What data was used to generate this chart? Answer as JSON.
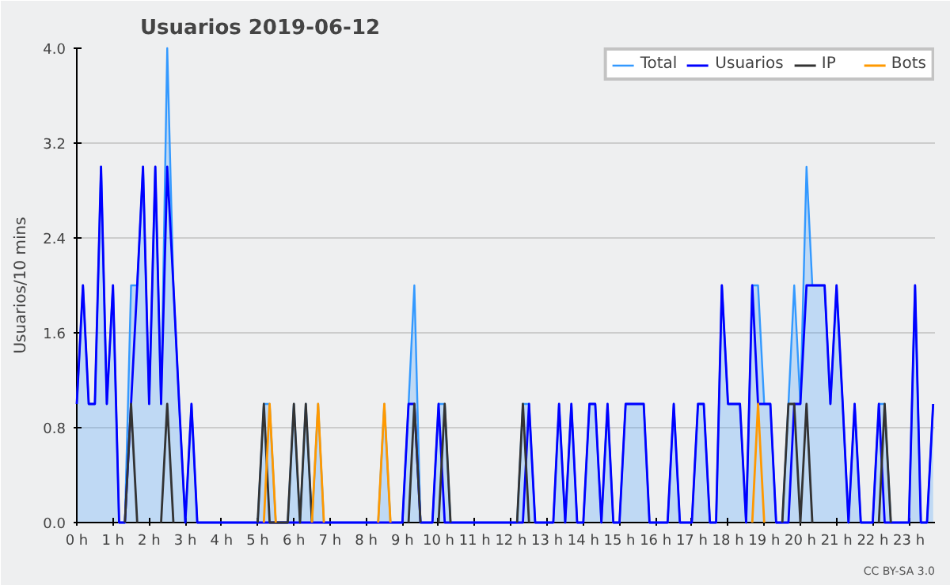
{
  "chart_data": {
    "type": "line",
    "title": "Usuarios  2019-06-12",
    "ylabel": "Usuarios/10 mins",
    "x": [
      0,
      0.17,
      0.33,
      0.5,
      0.67,
      0.83,
      1,
      1.17,
      1.33,
      1.5,
      1.67,
      1.83,
      2,
      2.17,
      2.33,
      2.5,
      2.67,
      2.83,
      3,
      3.17,
      3.33,
      3.5,
      3.67,
      3.83,
      4,
      4.17,
      4.33,
      4.5,
      4.67,
      4.83,
      5,
      5.17,
      5.33,
      5.5,
      5.67,
      5.83,
      6,
      6.17,
      6.33,
      6.5,
      6.67,
      6.83,
      7,
      7.17,
      7.33,
      7.5,
      7.67,
      7.83,
      8,
      8.17,
      8.33,
      8.5,
      8.67,
      8.83,
      9,
      9.17,
      9.33,
      9.5,
      9.67,
      9.83,
      10,
      10.17,
      10.33,
      10.5,
      10.67,
      10.83,
      11,
      11.17,
      11.33,
      11.5,
      11.67,
      11.83,
      12,
      12.17,
      12.33,
      12.5,
      12.67,
      12.83,
      13,
      13.17,
      13.33,
      13.5,
      13.67,
      13.83,
      14,
      14.17,
      14.33,
      14.5,
      14.67,
      14.83,
      15,
      15.17,
      15.33,
      15.5,
      15.67,
      15.83,
      16,
      16.17,
      16.33,
      16.5,
      16.67,
      16.83,
      17,
      17.17,
      17.33,
      17.5,
      17.67,
      17.83,
      18,
      18.17,
      18.33,
      18.5,
      18.67,
      18.83,
      19,
      19.17,
      19.33,
      19.5,
      19.67,
      19.83,
      20,
      20.17,
      20.33,
      20.5,
      20.67,
      20.83,
      21,
      21.17,
      21.33,
      21.5,
      21.67,
      21.83,
      22,
      22.17,
      22.33,
      22.5,
      22.67,
      22.83,
      23,
      23.17,
      23.33,
      23.5,
      23.67
    ],
    "series": [
      {
        "name": "Total",
        "type": "area",
        "color": "#3399ff",
        "values": [
          1,
          2,
          1,
          1,
          3,
          1,
          2,
          0,
          0,
          2,
          2,
          3,
          1,
          3,
          1,
          4,
          2,
          1,
          0,
          1,
          0,
          0,
          0,
          0,
          0,
          0,
          0,
          0,
          0,
          0,
          0,
          1,
          1,
          0,
          0,
          0,
          1,
          0,
          1,
          0,
          1,
          0,
          0,
          0,
          0,
          0,
          0,
          0,
          0,
          0,
          0,
          1,
          0,
          0,
          0,
          1,
          2,
          0,
          0,
          0,
          1,
          1,
          0,
          0,
          0,
          0,
          0,
          0,
          0,
          0,
          0,
          0,
          0,
          0,
          1,
          1,
          0,
          0,
          0,
          0,
          1,
          0,
          1,
          0,
          0,
          1,
          1,
          0,
          1,
          0,
          0,
          1,
          1,
          1,
          1,
          0,
          0,
          0,
          0,
          1,
          0,
          0,
          0,
          1,
          1,
          0,
          0,
          2,
          1,
          1,
          1,
          0,
          2,
          2,
          1,
          1,
          0,
          0,
          1,
          2,
          1,
          3,
          2,
          2,
          2,
          1,
          2,
          1,
          0,
          1,
          0,
          0,
          0,
          1,
          1,
          0,
          0,
          0,
          0,
          2,
          0,
          0,
          1
        ]
      },
      {
        "name": "Usuarios",
        "color": "#0000ff",
        "values": [
          1,
          2,
          1,
          1,
          3,
          1,
          2,
          0,
          0,
          1,
          2,
          3,
          1,
          3,
          1,
          3,
          2,
          1,
          0,
          1,
          0,
          0,
          0,
          0,
          0,
          0,
          0,
          0,
          0,
          0,
          0,
          0,
          0,
          0,
          0,
          0,
          0,
          0,
          0,
          0,
          0,
          0,
          0,
          0,
          0,
          0,
          0,
          0,
          0,
          0,
          0,
          0,
          0,
          0,
          0,
          1,
          1,
          0,
          0,
          0,
          1,
          0,
          0,
          0,
          0,
          0,
          0,
          0,
          0,
          0,
          0,
          0,
          0,
          0,
          0,
          1,
          0,
          0,
          0,
          0,
          1,
          0,
          1,
          0,
          0,
          1,
          1,
          0,
          1,
          0,
          0,
          1,
          1,
          1,
          1,
          0,
          0,
          0,
          0,
          1,
          0,
          0,
          0,
          1,
          1,
          0,
          0,
          2,
          1,
          1,
          1,
          0,
          2,
          1,
          1,
          1,
          0,
          0,
          0,
          1,
          1,
          2,
          2,
          2,
          2,
          1,
          2,
          1,
          0,
          1,
          0,
          0,
          0,
          1,
          0,
          0,
          0,
          0,
          0,
          2,
          0,
          0,
          1
        ]
      },
      {
        "name": "IP",
        "color": "#333333",
        "values": [
          null,
          null,
          null,
          null,
          null,
          null,
          null,
          null,
          0,
          1,
          0,
          null,
          null,
          null,
          0,
          1,
          0,
          null,
          null,
          null,
          null,
          null,
          null,
          null,
          null,
          null,
          null,
          null,
          null,
          null,
          0,
          1,
          0,
          0,
          0,
          0,
          1,
          0,
          1,
          0,
          null,
          null,
          null,
          null,
          null,
          null,
          null,
          null,
          null,
          null,
          null,
          null,
          null,
          null,
          null,
          0,
          1,
          0,
          null,
          null,
          0,
          1,
          0,
          null,
          null,
          null,
          null,
          null,
          null,
          null,
          null,
          null,
          null,
          0,
          1,
          0,
          null,
          null,
          null,
          null,
          null,
          null,
          null,
          null,
          null,
          null,
          null,
          null,
          null,
          null,
          null,
          null,
          null,
          null,
          null,
          null,
          null,
          null,
          null,
          null,
          null,
          null,
          null,
          null,
          null,
          null,
          null,
          null,
          null,
          null,
          null,
          null,
          null,
          null,
          null,
          null,
          null,
          0,
          1,
          1,
          0,
          1,
          0,
          null,
          null,
          null,
          null,
          null,
          null,
          null,
          null,
          null,
          null,
          0,
          1,
          0,
          null,
          null,
          null,
          null,
          null,
          null,
          null
        ]
      },
      {
        "name": "Bots",
        "color": "#ff9900",
        "values": [
          null,
          null,
          null,
          null,
          null,
          null,
          null,
          null,
          null,
          null,
          null,
          null,
          null,
          null,
          null,
          null,
          null,
          null,
          null,
          null,
          null,
          null,
          null,
          null,
          null,
          null,
          null,
          null,
          null,
          null,
          null,
          0,
          1,
          0,
          null,
          null,
          null,
          null,
          null,
          0,
          1,
          0,
          null,
          null,
          null,
          null,
          null,
          null,
          null,
          null,
          0,
          1,
          0,
          null,
          null,
          null,
          null,
          null,
          null,
          null,
          null,
          null,
          null,
          null,
          null,
          null,
          null,
          null,
          null,
          null,
          null,
          null,
          null,
          null,
          null,
          null,
          null,
          null,
          null,
          null,
          null,
          null,
          null,
          null,
          null,
          null,
          null,
          null,
          null,
          null,
          null,
          null,
          null,
          null,
          null,
          null,
          null,
          null,
          null,
          null,
          null,
          null,
          null,
          null,
          null,
          null,
          null,
          null,
          null,
          null,
          null,
          null,
          0,
          1,
          0,
          null,
          null,
          null,
          null,
          null,
          null,
          null,
          null,
          null,
          null,
          null,
          null,
          null,
          null,
          null,
          null,
          null,
          null,
          null,
          null,
          null,
          null,
          null,
          null,
          null,
          null,
          null,
          null
        ]
      }
    ],
    "xlim": [
      0,
      23.72
    ],
    "ylim": [
      0,
      4
    ],
    "xticks": [
      {
        "value": 0,
        "label": "0 h"
      },
      {
        "value": 1,
        "label": "1 h"
      },
      {
        "value": 2,
        "label": "2 h"
      },
      {
        "value": 3,
        "label": "3 h"
      },
      {
        "value": 4,
        "label": "4 h"
      },
      {
        "value": 5,
        "label": "5 h"
      },
      {
        "value": 6,
        "label": "6 h"
      },
      {
        "value": 7,
        "label": "7 h"
      },
      {
        "value": 8,
        "label": "8 h"
      },
      {
        "value": 9,
        "label": "9 h"
      },
      {
        "value": 10,
        "label": "10 h"
      },
      {
        "value": 11,
        "label": "11 h"
      },
      {
        "value": 12,
        "label": "12 h"
      },
      {
        "value": 13,
        "label": "13 h"
      },
      {
        "value": 14,
        "label": "14 h"
      },
      {
        "value": 15,
        "label": "15 h"
      },
      {
        "value": 16,
        "label": "16 h"
      },
      {
        "value": 17,
        "label": "17 h"
      },
      {
        "value": 18,
        "label": "18 h"
      },
      {
        "value": 19,
        "label": "19 h"
      },
      {
        "value": 20,
        "label": "20 h"
      },
      {
        "value": 21,
        "label": "21 h"
      },
      {
        "value": 22,
        "label": "22 h"
      },
      {
        "value": 23,
        "label": "23 h"
      }
    ],
    "yticks": [
      {
        "value": 0,
        "label": "0.0"
      },
      {
        "value": 0.8,
        "label": "0.8"
      },
      {
        "value": 1.6,
        "label": "1.6"
      },
      {
        "value": 2.4,
        "label": "2.4"
      },
      {
        "value": 3.2,
        "label": "3.2"
      },
      {
        "value": 4,
        "label": "4.0"
      }
    ],
    "grid": "y",
    "legend": "top right",
    "annotations": [
      "CC BY-SA 3.0"
    ]
  }
}
